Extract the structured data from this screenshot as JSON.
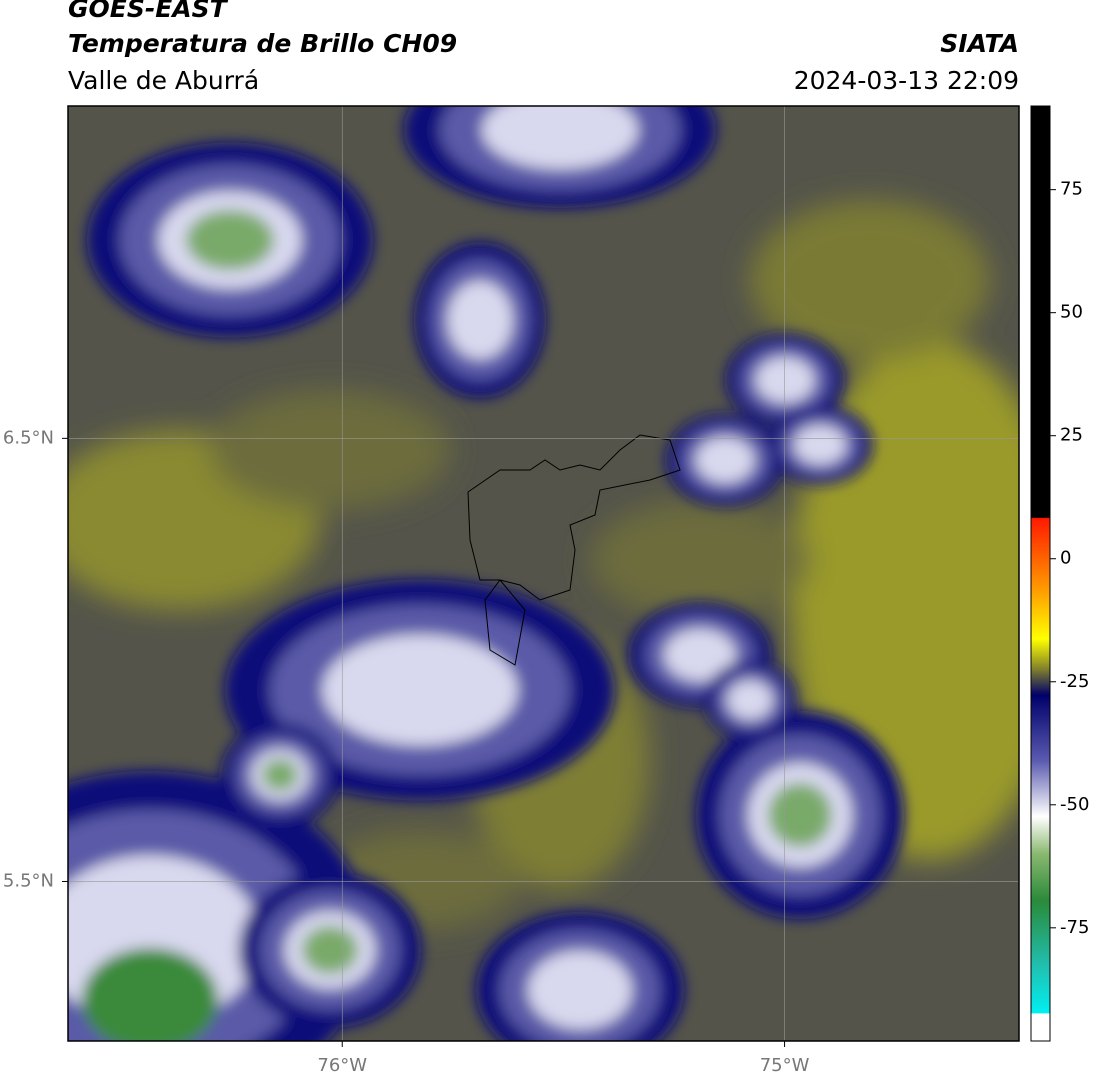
{
  "header": {
    "title": "GOES-EAST",
    "subtitle": "Temperatura de Brillo CH09",
    "region": "Valle de Aburrá",
    "source": "SIATA",
    "datetime": "2024-03-13 22:09"
  },
  "map": {
    "xlim": [
      -76.62,
      -74.47
    ],
    "ylim": [
      5.14,
      7.25
    ],
    "xticks": [
      {
        "value": -76,
        "label": "76°W"
      },
      {
        "value": -75,
        "label": "75°W"
      }
    ],
    "yticks": [
      {
        "value": 6.5,
        "label": "6.5°N"
      },
      {
        "value": 5.5,
        "label": "5.5°N"
      }
    ]
  },
  "colorbar": {
    "lim": [
      -98,
      92
    ],
    "ticks": [
      75,
      50,
      25,
      0,
      -25,
      -50,
      -75
    ]
  }
}
